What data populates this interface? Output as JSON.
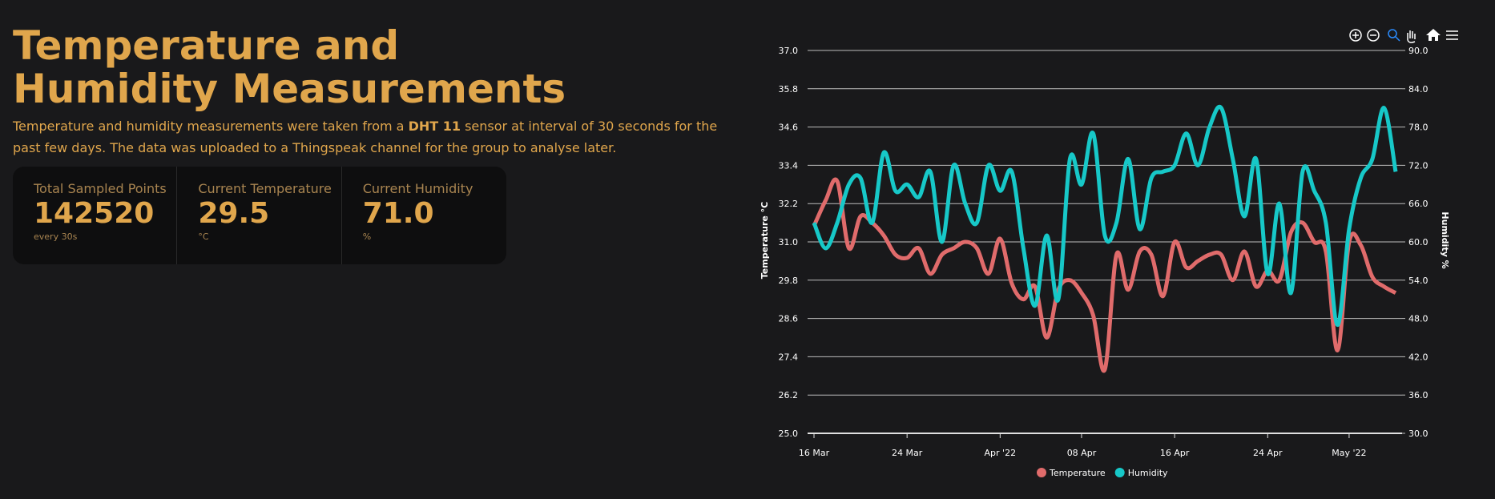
{
  "header": {
    "title": "Temperature and Humidity Measurements",
    "description": [
      "Temperature and humidity measurements were taken from a ",
      "DHT 11",
      " sensor at interval of 30 seconds for the past few days. The data was uploaded to a Thingspeak channel for the group to analyse later."
    ]
  },
  "stats": [
    {
      "label": "Total Sampled Points",
      "value": "142520",
      "unit": "every 30s"
    },
    {
      "label": "Current Temperature",
      "value": "29.5",
      "unit": "°C"
    },
    {
      "label": "Current Humidity",
      "value": "71.0",
      "unit": "%"
    }
  ],
  "chart_data": {
    "type": "line",
    "x": [
      "2022-03-16",
      "2022-03-17",
      "2022-03-18",
      "2022-03-19",
      "2022-03-20",
      "2022-03-21",
      "2022-03-22",
      "2022-03-23",
      "2022-03-24",
      "2022-03-25",
      "2022-03-26",
      "2022-03-27",
      "2022-03-28",
      "2022-03-29",
      "2022-03-30",
      "2022-03-31",
      "2022-04-01",
      "2022-04-02",
      "2022-04-03",
      "2022-04-04",
      "2022-04-05",
      "2022-04-06",
      "2022-04-07",
      "2022-04-08",
      "2022-04-09",
      "2022-04-10",
      "2022-04-11",
      "2022-04-12",
      "2022-04-13",
      "2022-04-14",
      "2022-04-15",
      "2022-04-16",
      "2022-04-17",
      "2022-04-18",
      "2022-04-19",
      "2022-04-20",
      "2022-04-21",
      "2022-04-22",
      "2022-04-23",
      "2022-04-24",
      "2022-04-25",
      "2022-04-26",
      "2022-04-27",
      "2022-04-28",
      "2022-04-29",
      "2022-04-30",
      "2022-05-01",
      "2022-05-02",
      "2022-05-03",
      "2022-05-04",
      "2022-05-05"
    ],
    "series": [
      {
        "name": "Temperature",
        "color": "#e06b6b",
        "values": [
          31.5,
          32.3,
          32.9,
          30.8,
          31.8,
          31.6,
          31.2,
          30.6,
          30.5,
          30.8,
          30.0,
          30.6,
          30.8,
          31.0,
          30.8,
          30.0,
          31.1,
          29.7,
          29.2,
          29.6,
          28.0,
          29.5,
          29.8,
          29.4,
          28.7,
          27.0,
          30.6,
          29.5,
          30.7,
          30.6,
          29.3,
          31.0,
          30.2,
          30.4,
          30.6,
          30.6,
          29.8,
          30.7,
          29.6,
          30.1,
          29.8,
          31.3,
          31.6,
          31.0,
          30.7,
          27.6,
          31.0,
          30.9,
          29.9,
          29.6,
          29.4
        ]
      },
      {
        "name": "Humidity",
        "color": "#17c8c8",
        "axis": "y2",
        "values": [
          63,
          59,
          63,
          69,
          70,
          63,
          74,
          68,
          69,
          67,
          71,
          60,
          72,
          66,
          63,
          72,
          68,
          71,
          59,
          50,
          61,
          51,
          73,
          69,
          77,
          61,
          63,
          73,
          62,
          70,
          71,
          72,
          77,
          72,
          78,
          81,
          73,
          64,
          73,
          55,
          66,
          52,
          71,
          68,
          63,
          47,
          62,
          70,
          73,
          81,
          71
        ]
      }
    ],
    "xlim": [
      "2022-03-16",
      "2022-05-05"
    ],
    "xticks": [
      {
        "value": "2022-03-16",
        "label": "16 Mar"
      },
      {
        "value": "2022-03-24",
        "label": "24 Mar"
      },
      {
        "value": "2022-04-01",
        "label": "Apr '22"
      },
      {
        "value": "2022-04-08",
        "label": "08 Apr"
      },
      {
        "value": "2022-04-16",
        "label": "16 Apr"
      },
      {
        "value": "2022-04-24",
        "label": "24 Apr"
      },
      {
        "value": "2022-05-01",
        "label": "May '22"
      }
    ],
    "ylim": [
      25,
      37
    ],
    "yticks": [
      {
        "value": 25,
        "label": "25.0"
      },
      {
        "value": 26.2,
        "label": "26.2"
      },
      {
        "value": 27.4,
        "label": "27.4"
      },
      {
        "value": 28.6,
        "label": "28.6"
      },
      {
        "value": 29.8,
        "label": "29.8"
      },
      {
        "value": 31,
        "label": "31.0"
      },
      {
        "value": 32.2,
        "label": "32.2"
      },
      {
        "value": 33.4,
        "label": "33.4"
      },
      {
        "value": 34.6,
        "label": "34.6"
      },
      {
        "value": 35.8,
        "label": "35.8"
      },
      {
        "value": 37,
        "label": "37.0"
      }
    ],
    "y2lim": [
      30,
      90
    ],
    "y2ticks": [
      {
        "value": 30,
        "label": "30.0"
      },
      {
        "value": 36,
        "label": "36.0"
      },
      {
        "value": 42,
        "label": "42.0"
      },
      {
        "value": 48,
        "label": "48.0"
      },
      {
        "value": 54,
        "label": "54.0"
      },
      {
        "value": 60,
        "label": "60.0"
      },
      {
        "value": 66,
        "label": "66.0"
      },
      {
        "value": 72,
        "label": "72.0"
      },
      {
        "value": 78,
        "label": "78.0"
      },
      {
        "value": 84,
        "label": "84.0"
      },
      {
        "value": 90,
        "label": "90.0"
      }
    ],
    "ylabel": "Temperature °C",
    "y2label": "Humidity %",
    "grid": true,
    "legend": "bottom"
  }
}
